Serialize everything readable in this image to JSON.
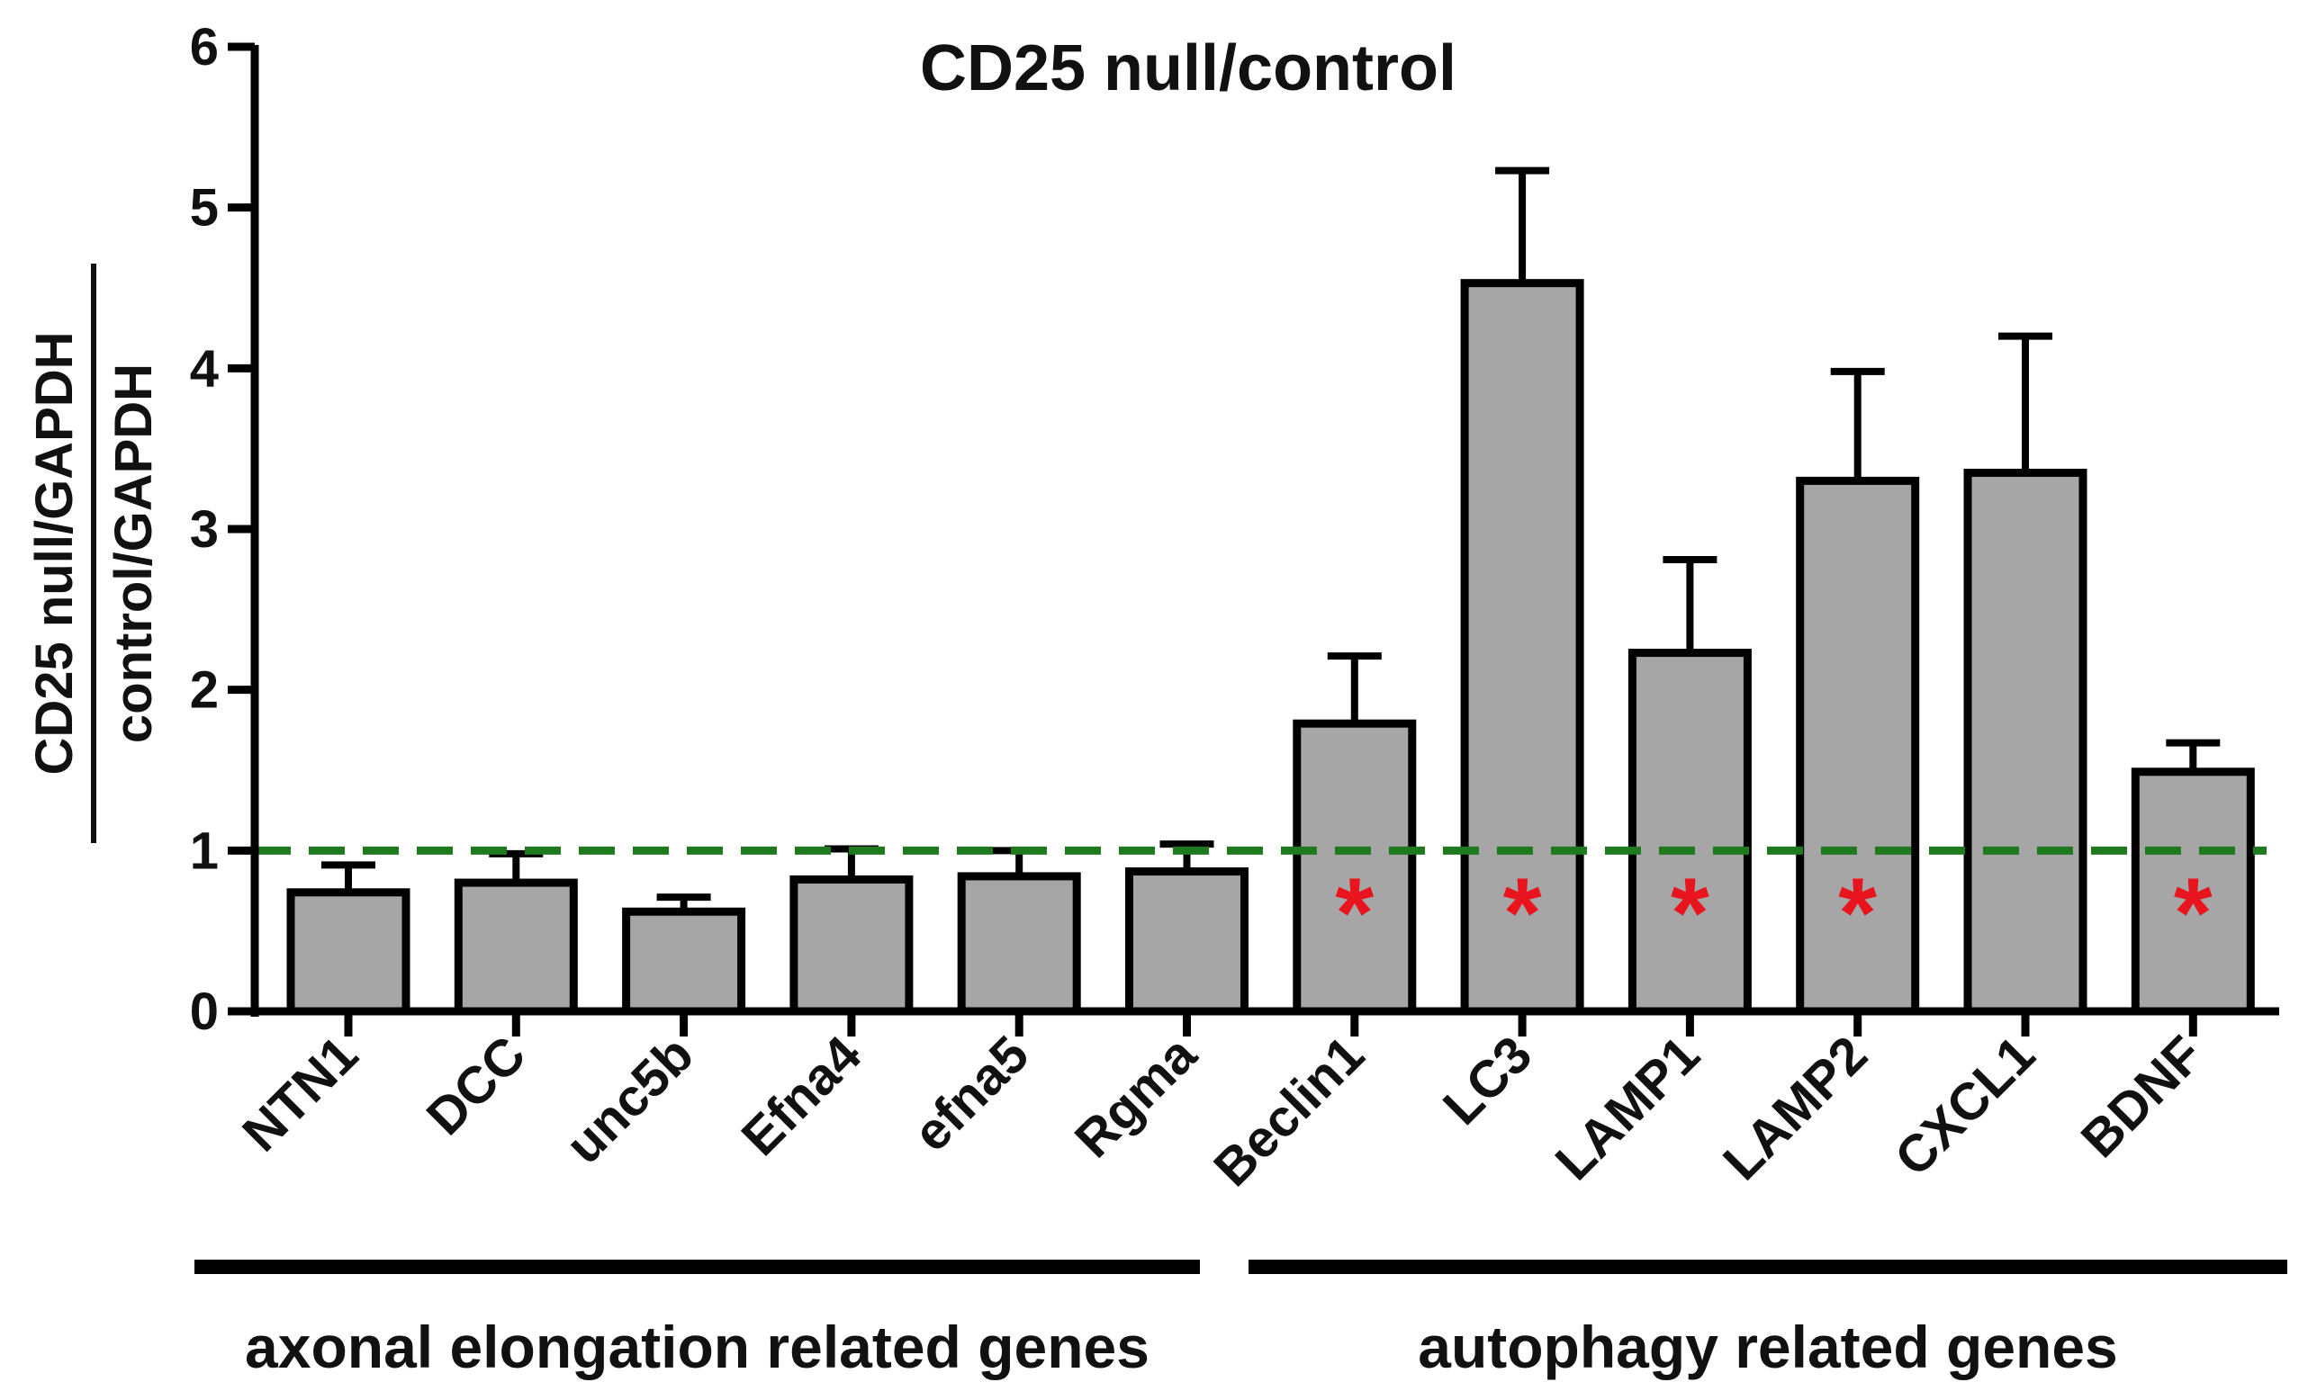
{
  "chart_data": {
    "type": "bar",
    "title": "CD25 null/control",
    "ylabel_numerator": "CD25 null/GAPDH",
    "ylabel_denominator": "control/GAPDH",
    "ylim": [
      0,
      6
    ],
    "yticks": [
      0,
      1,
      2,
      3,
      4,
      5,
      6
    ],
    "categories": [
      "NTN1",
      "DCC",
      "unc5b",
      "Efna4",
      "efna5",
      "Rgma",
      "Beclin1",
      "LC3",
      "LAMP1",
      "LAMP2",
      "CXCL1",
      "BDNF"
    ],
    "values": [
      0.74,
      0.8,
      0.62,
      0.82,
      0.84,
      0.87,
      1.79,
      4.53,
      2.23,
      3.3,
      3.35,
      1.49
    ],
    "errors": [
      0.17,
      0.18,
      0.09,
      0.19,
      0.16,
      0.17,
      0.42,
      0.7,
      0.58,
      0.68,
      0.85,
      0.18
    ],
    "significant": [
      false,
      false,
      false,
      false,
      false,
      false,
      true,
      true,
      true,
      true,
      false,
      true
    ],
    "significance_marker": "*",
    "reference_line": {
      "value": 1,
      "style": "dashed"
    },
    "groups": [
      {
        "label": "axonal elongation related genes",
        "from": 0,
        "to": 5
      },
      {
        "label": "autophagy related genes",
        "from": 6,
        "to": 11
      }
    ],
    "colors": {
      "bar_fill": "#a6a6a6",
      "bar_stroke": "#000000",
      "reference_line": "#1f7a1f",
      "significance": "#e8141e"
    }
  }
}
